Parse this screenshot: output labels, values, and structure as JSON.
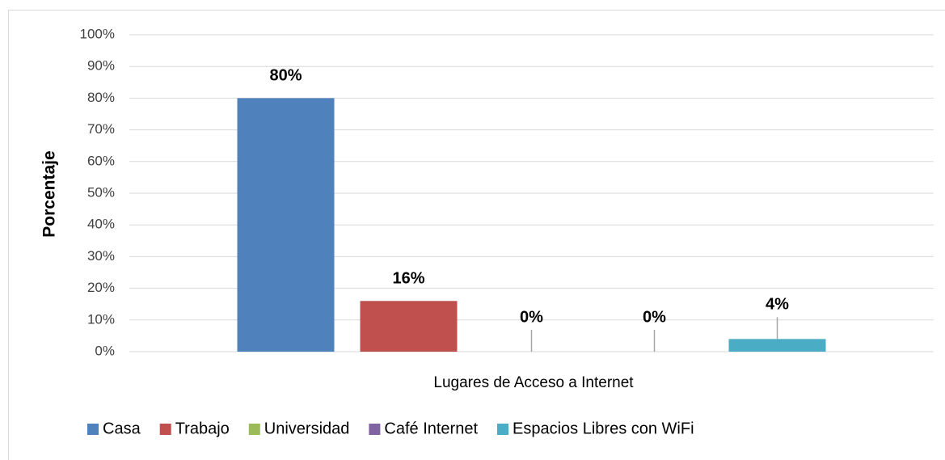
{
  "chart_data": {
    "type": "bar",
    "x_label": "Lugares de Acceso a Internet",
    "y_label": "Porcentaje",
    "series": [
      {
        "name": "Casa",
        "color": "#4f81bd",
        "values": [
          80
        ],
        "value_labels": [
          "80%"
        ]
      },
      {
        "name": "Trabajo",
        "color": "#c0504d",
        "values": [
          16
        ],
        "value_labels": [
          "16%"
        ]
      },
      {
        "name": "Universidad",
        "color": "#9bbb59",
        "values": [
          0
        ],
        "value_labels": [
          "0%"
        ]
      },
      {
        "name": "Café Internet",
        "color": "#8064a2",
        "values": [
          0
        ],
        "value_labels": [
          "0%"
        ]
      },
      {
        "name": "Espacios Libres con WiFi",
        "color": "#4bacc6",
        "values": [
          4
        ],
        "value_labels": [
          "4%"
        ]
      }
    ],
    "ylim": [
      0,
      100
    ],
    "yticks": [
      {
        "value": 0,
        "label": "0%"
      },
      {
        "value": 10,
        "label": "10%"
      },
      {
        "value": 20,
        "label": "20%"
      },
      {
        "value": 30,
        "label": "30%"
      },
      {
        "value": 40,
        "label": "40%"
      },
      {
        "value": 50,
        "label": "50%"
      },
      {
        "value": 60,
        "label": "60%"
      },
      {
        "value": 70,
        "label": "70%"
      },
      {
        "value": 80,
        "label": "80%"
      },
      {
        "value": 90,
        "label": "90%"
      },
      {
        "value": 100,
        "label": "100%"
      }
    ],
    "grid": true,
    "legend": "bottom"
  }
}
